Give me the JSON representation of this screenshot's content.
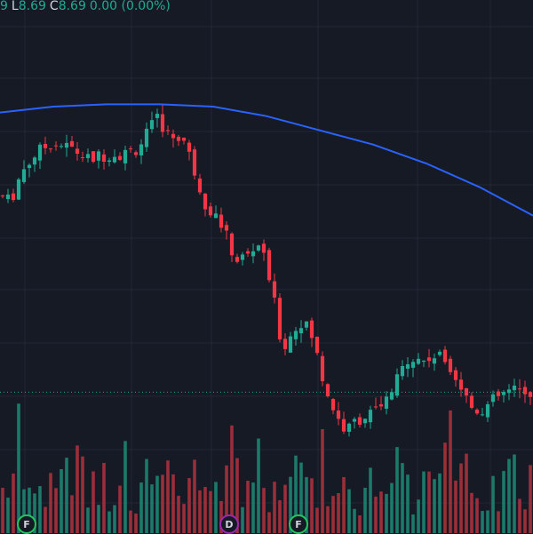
{
  "legend": {
    "first_digit": "9",
    "low_label": "L",
    "low_value": "8.69",
    "close_label": "C",
    "close_value": "8.69",
    "change": "0.00 (0.00%)"
  },
  "colors": {
    "background": "#161a25",
    "grid": "#232733",
    "up": "#22ab94",
    "down": "#f23645",
    "up_volume": "#1b7a6a",
    "down_volume": "#9a2f3a",
    "moving_average": "#2962ff",
    "price_line": "#22ab94",
    "earnings_marker": "#22c55e",
    "dividend_marker": "#9c27b0"
  },
  "markers": [
    {
      "label": "F",
      "kind": "earnings"
    },
    {
      "label": "D",
      "kind": "dividend"
    },
    {
      "label": "F",
      "kind": "earnings"
    }
  ],
  "chart_data": {
    "type": "candlestick",
    "price_anchor_points": [
      [
        0,
        10.35
      ],
      [
        12,
        10.3
      ],
      [
        24,
        10.55
      ],
      [
        40,
        10.7
      ],
      [
        58,
        10.8
      ],
      [
        80,
        10.75
      ],
      [
        100,
        10.65
      ],
      [
        120,
        10.7
      ],
      [
        140,
        10.7
      ],
      [
        155,
        10.75
      ],
      [
        168,
        10.9
      ],
      [
        178,
        11.0
      ],
      [
        190,
        10.85
      ],
      [
        205,
        10.85
      ],
      [
        215,
        10.65
      ],
      [
        230,
        10.3
      ],
      [
        250,
        10.1
      ],
      [
        265,
        9.8
      ],
      [
        280,
        9.85
      ],
      [
        292,
        9.95
      ],
      [
        305,
        9.6
      ],
      [
        318,
        9.05
      ],
      [
        330,
        9.2
      ],
      [
        340,
        9.3
      ],
      [
        352,
        9.15
      ],
      [
        365,
        8.75
      ],
      [
        378,
        8.5
      ],
      [
        390,
        8.35
      ],
      [
        400,
        8.45
      ],
      [
        415,
        8.5
      ],
      [
        430,
        8.55
      ],
      [
        445,
        8.75
      ],
      [
        460,
        9.0
      ],
      [
        475,
        8.95
      ],
      [
        490,
        9.0
      ],
      [
        505,
        8.95
      ],
      [
        518,
        8.75
      ],
      [
        532,
        8.55
      ],
      [
        545,
        8.55
      ],
      [
        560,
        8.65
      ],
      [
        575,
        8.7
      ],
      [
        590,
        8.7
      ],
      [
        600,
        8.69
      ]
    ],
    "moving_average_anchor_points": [
      [
        0,
        11.05
      ],
      [
        60,
        11.1
      ],
      [
        120,
        11.12
      ],
      [
        180,
        11.12
      ],
      [
        240,
        11.1
      ],
      [
        300,
        11.02
      ],
      [
        360,
        10.9
      ],
      [
        420,
        10.78
      ],
      [
        480,
        10.62
      ],
      [
        540,
        10.42
      ],
      [
        600,
        10.18
      ]
    ],
    "last_price": 8.69,
    "candle_count": 100
  }
}
